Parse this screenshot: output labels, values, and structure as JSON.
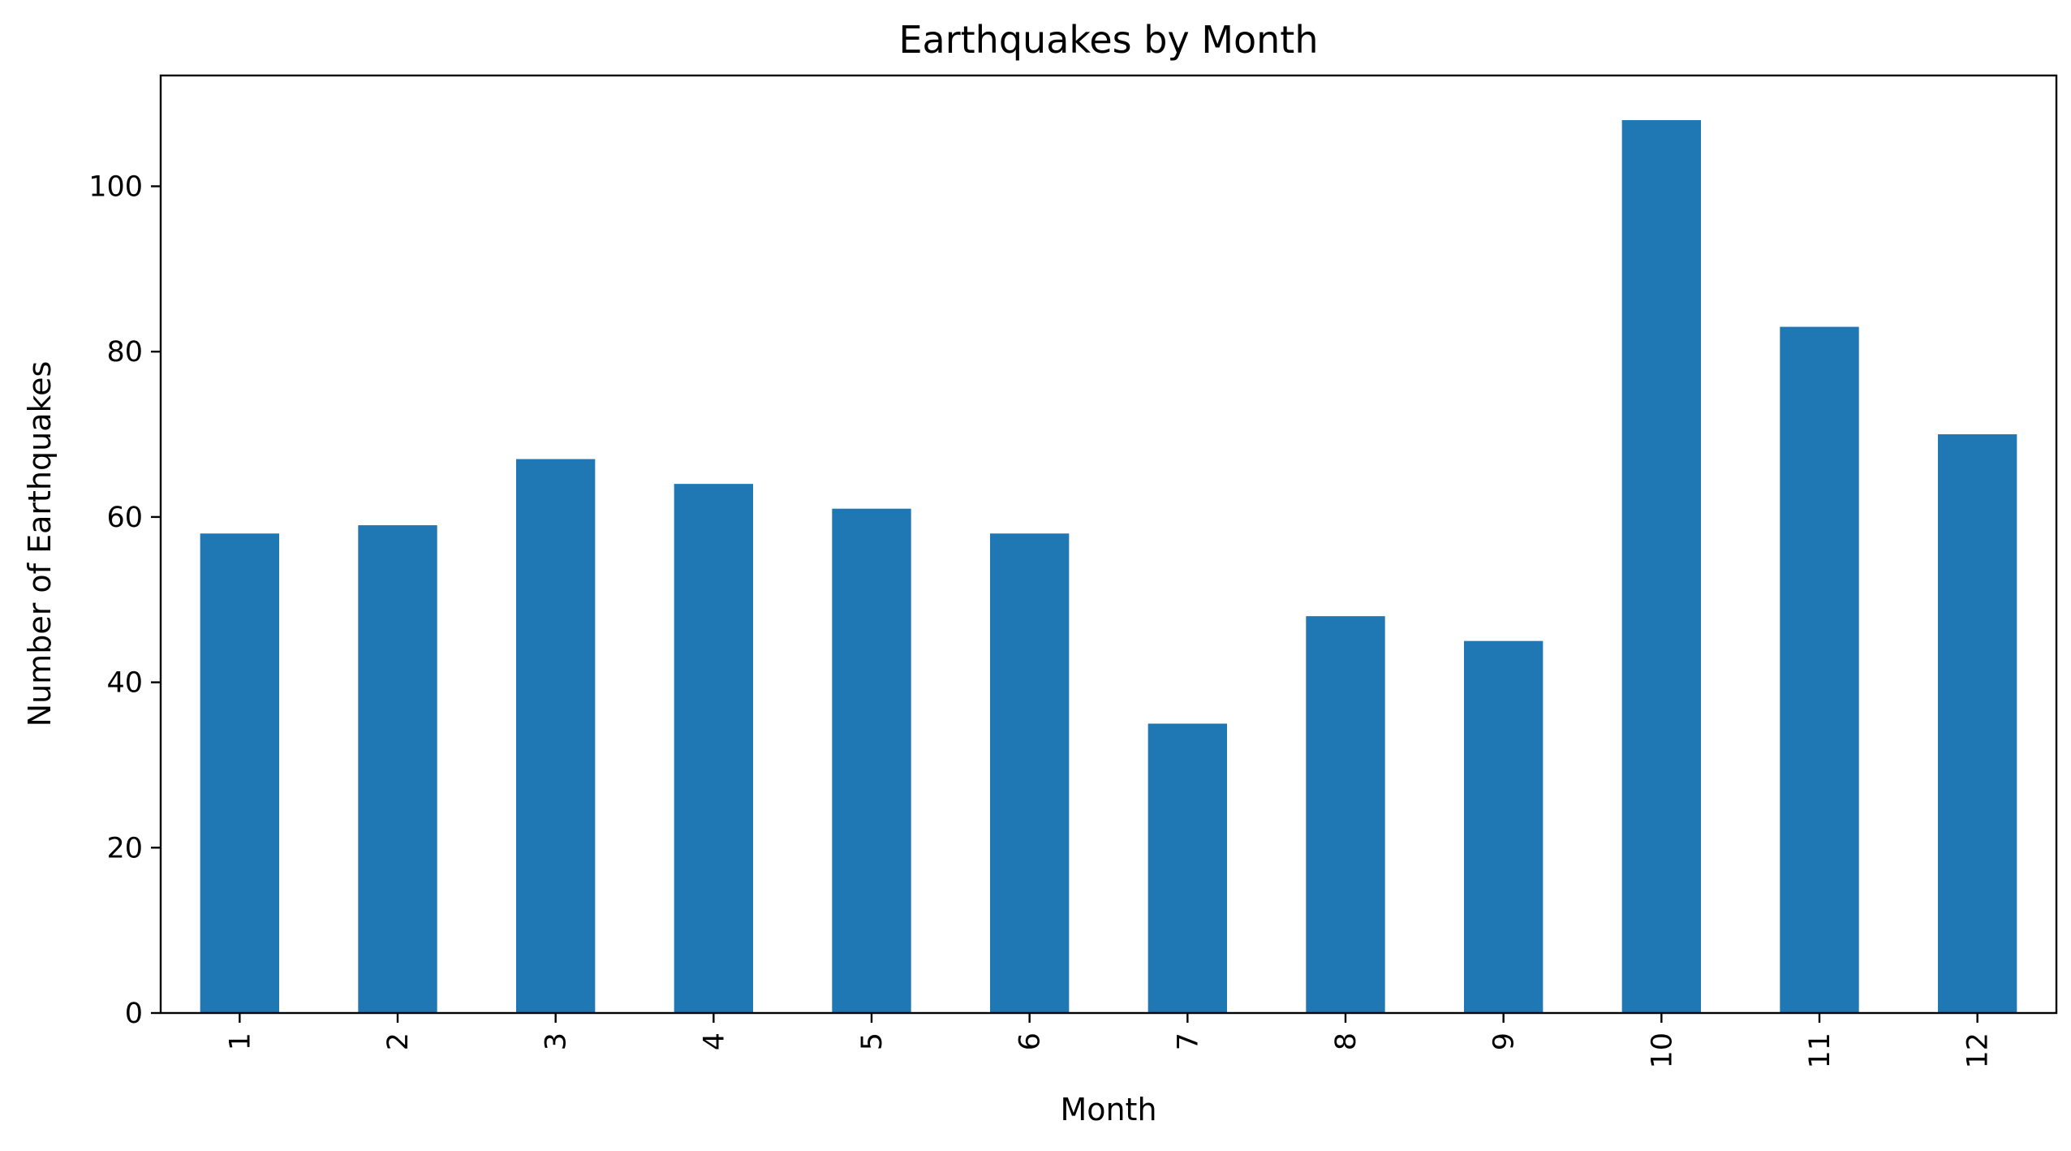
{
  "chart_data": {
    "type": "bar",
    "title": "Earthquakes by Month",
    "xlabel": "Month",
    "ylabel": "Number of Earthquakes",
    "categories": [
      "1",
      "2",
      "3",
      "4",
      "5",
      "6",
      "7",
      "8",
      "9",
      "10",
      "11",
      "12"
    ],
    "values": [
      58,
      59,
      67,
      64,
      61,
      58,
      35,
      48,
      45,
      108,
      83,
      70
    ],
    "ylim": [
      0,
      113.4
    ],
    "yticks": [
      0,
      20,
      40,
      60,
      80,
      100
    ],
    "ytick_labels": [
      "0",
      "20",
      "40",
      "60",
      "80",
      "100"
    ],
    "grid": false,
    "legend": "none",
    "bar_color": "#1f77b4",
    "axis_color": "#000000",
    "background": "#ffffff"
  }
}
